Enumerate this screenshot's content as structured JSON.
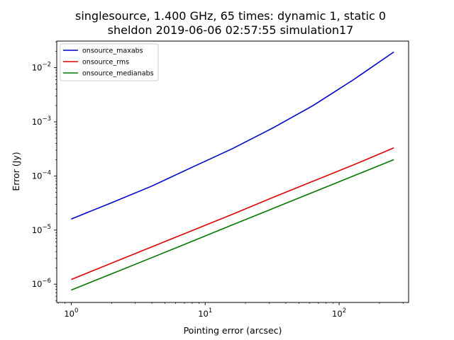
{
  "chart_data": {
    "type": "line",
    "title_lines": [
      "singlesource, 1.400 GHz, 65 times: dynamic 1, static 0",
      "sheldon 2019-06-06 02:57:55 simulation17"
    ],
    "xlabel": "Pointing error (arcsec)",
    "ylabel": "Error (Jy)",
    "xscale": "log",
    "yscale": "log",
    "xlim": [
      0.78,
      330
    ],
    "ylim": [
      4.6e-07,
      0.031
    ],
    "xticks": [
      {
        "value": 1,
        "base": "10",
        "exp": "0"
      },
      {
        "value": 10,
        "base": "10",
        "exp": "1"
      },
      {
        "value": 100,
        "base": "10",
        "exp": "2"
      }
    ],
    "yticks": [
      {
        "value": 1e-06,
        "base": "10",
        "exp": "−6"
      },
      {
        "value": 1e-05,
        "base": "10",
        "exp": "−5"
      },
      {
        "value": 0.0001,
        "base": "10",
        "exp": "−4"
      },
      {
        "value": 0.001,
        "base": "10",
        "exp": "−3"
      },
      {
        "value": 0.01,
        "base": "10",
        "exp": "−2"
      }
    ],
    "grid": false,
    "legend_position": "top-left",
    "x": [
      1,
      2,
      4,
      8,
      16,
      32,
      64,
      128,
      256
    ],
    "series": [
      {
        "name": "onsource_maxabs",
        "color": "#0000cc",
        "values": [
          1.6e-05,
          3.2e-05,
          6.5e-05,
          0.000145,
          0.00032,
          0.00077,
          0.002,
          0.006,
          0.0195
        ]
      },
      {
        "name": "onsource_rms",
        "color": "#dd0000",
        "values": [
          1.22e-06,
          2.45e-06,
          4.9e-06,
          9.8e-06,
          1.96e-05,
          4e-05,
          8e-05,
          0.00016,
          0.00033
        ]
      },
      {
        "name": "onsource_medianabs",
        "color": "#007700",
        "values": [
          7.8e-07,
          1.55e-06,
          3.1e-06,
          6.2e-06,
          1.25e-05,
          2.5e-05,
          5e-05,
          0.0001,
          0.0002
        ]
      }
    ]
  }
}
